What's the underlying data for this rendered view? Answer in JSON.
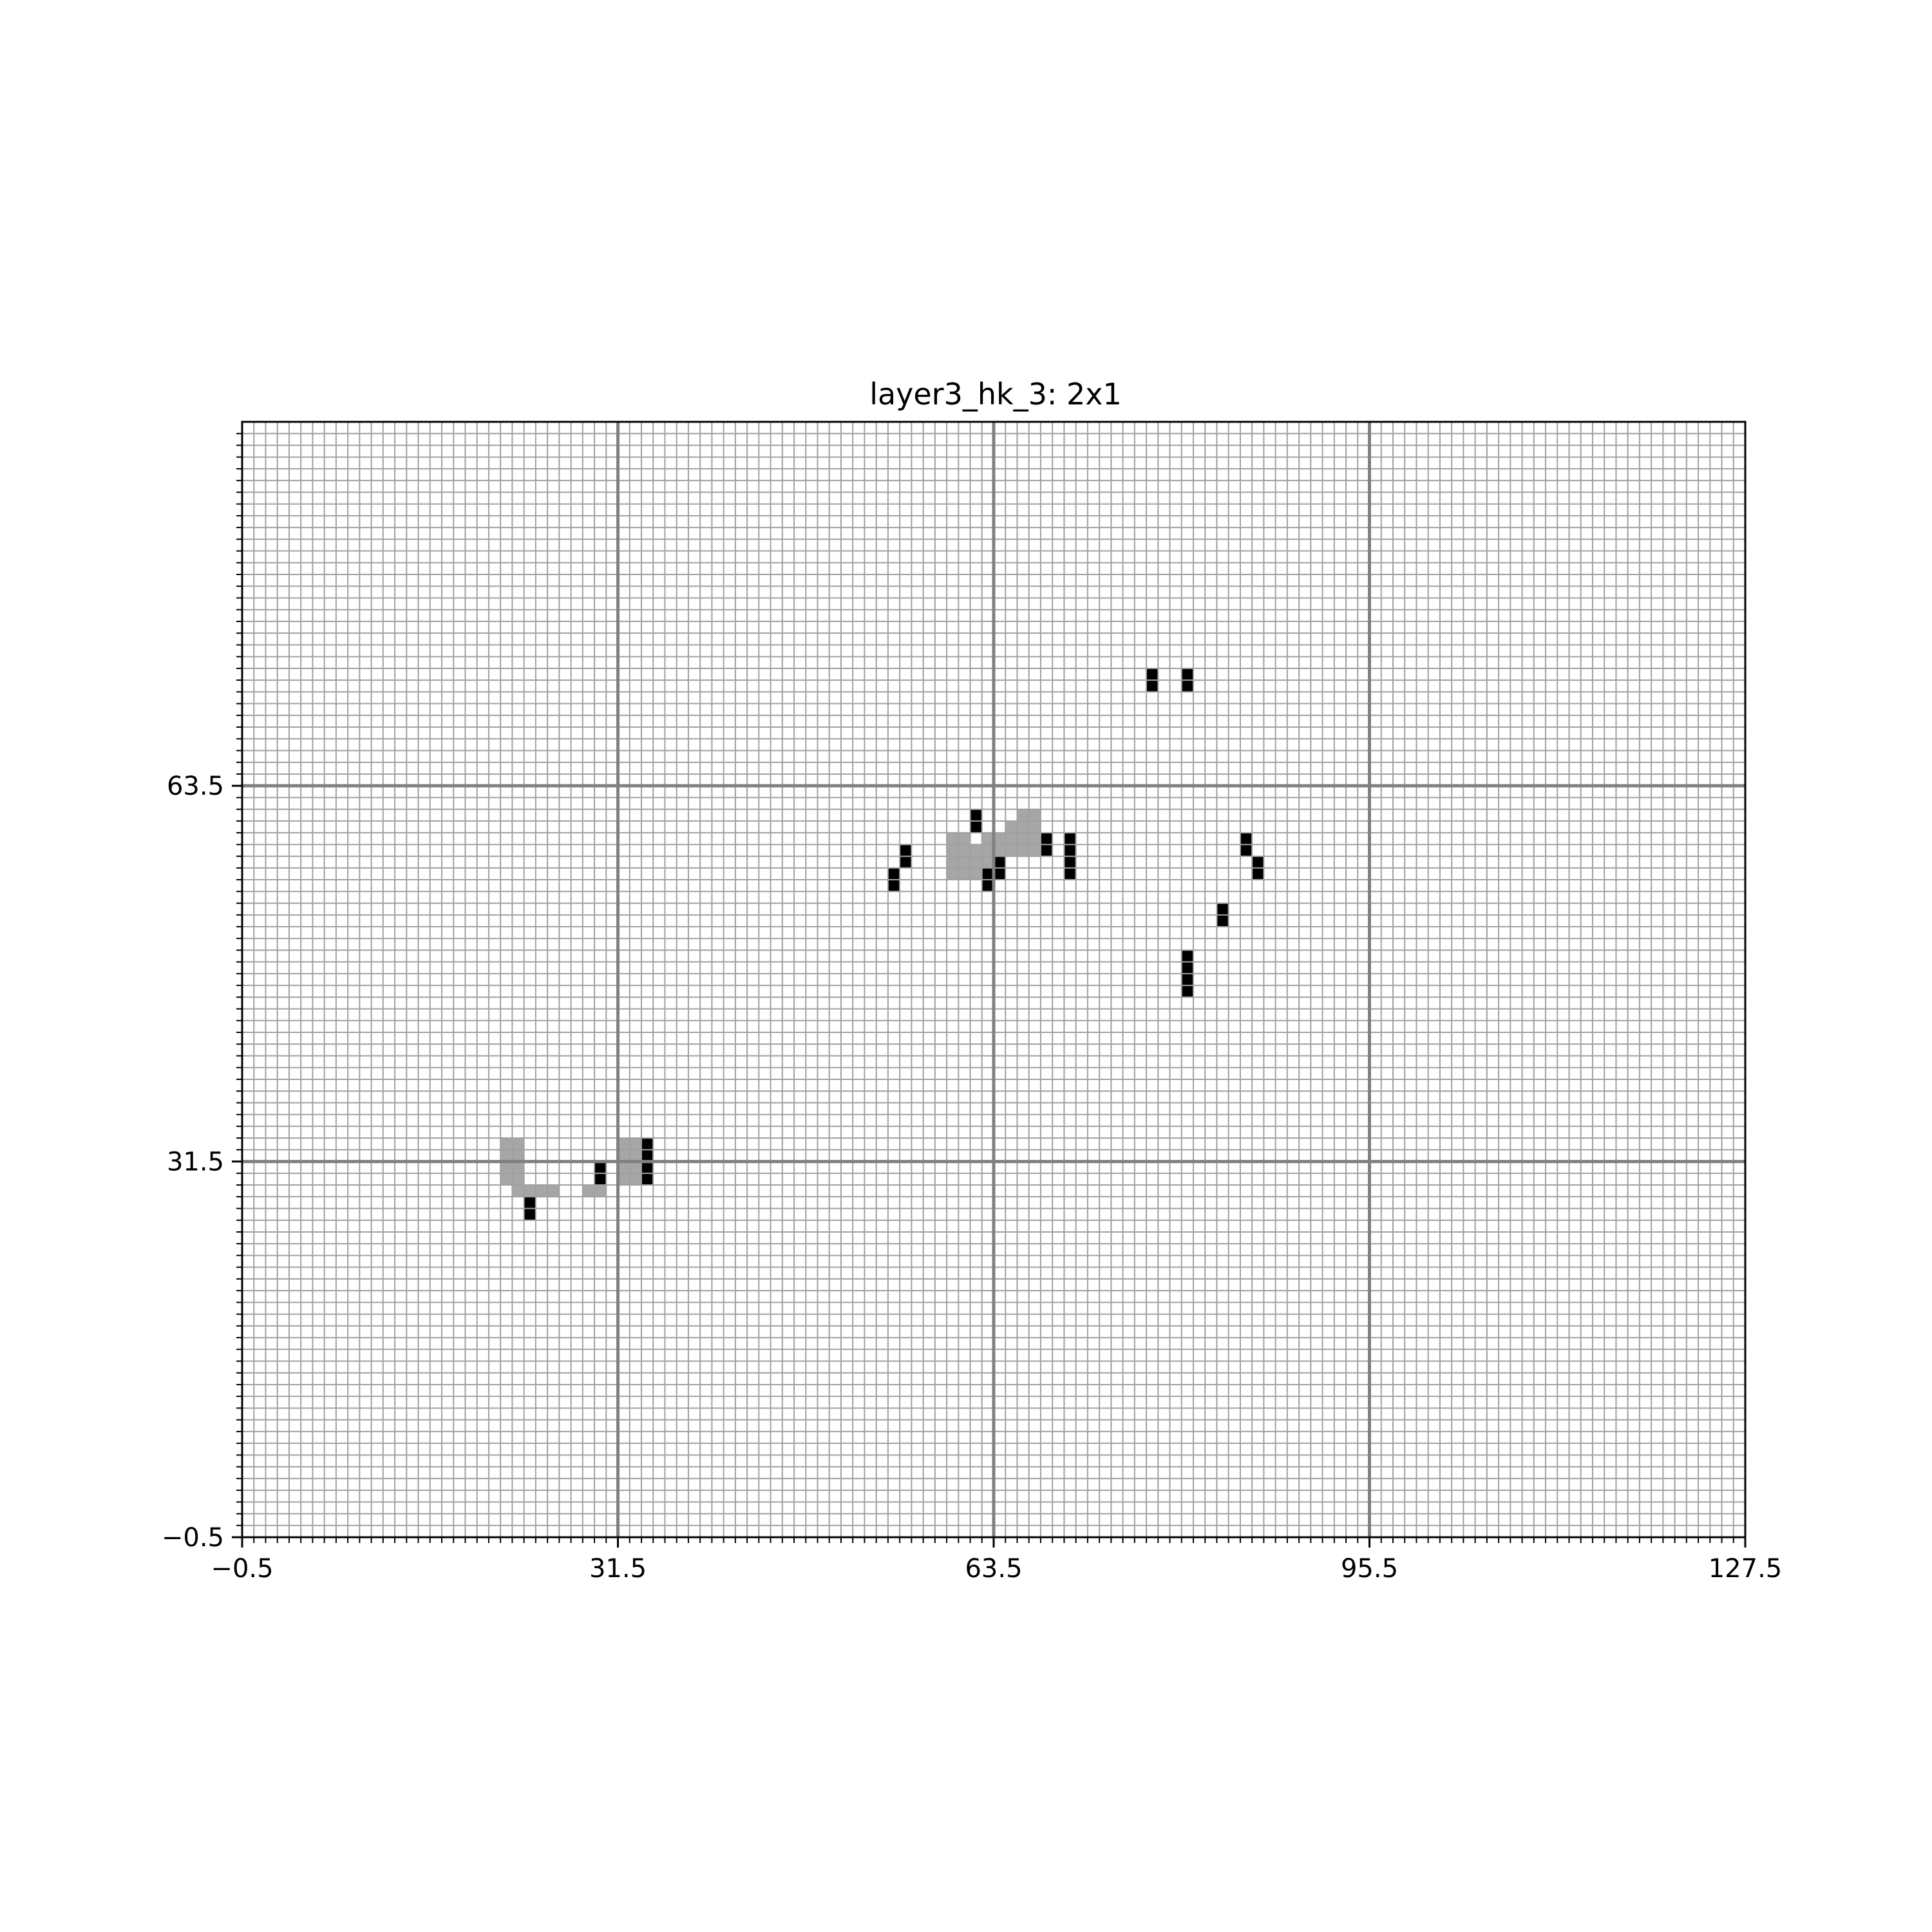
{
  "chart_data": {
    "type": "heatmap",
    "title": "layer3_hk_3: 2x1",
    "xlabel": "",
    "ylabel": "",
    "xlim": [
      -0.5,
      127.5
    ],
    "ylim": [
      -0.5,
      94.5
    ],
    "major_grid": true,
    "minor_grid": true,
    "x_ticks": [
      -0.5,
      31.5,
      63.5,
      95.5,
      127.5
    ],
    "x_tick_labels": [
      "−0.5",
      "31.5",
      "63.5",
      "95.5",
      "127.5"
    ],
    "y_ticks": [
      -0.5,
      31.5,
      63.5
    ],
    "y_tick_labels": [
      "−0.5",
      "31.5",
      "63.5"
    ],
    "colors": {
      "background": "#ffffff",
      "grid_minor": "#a0a0a0",
      "grid_major": "#808080",
      "active": "#000000",
      "context": "#a6a6a6"
    },
    "gray_cells": [
      [
        22,
        33
      ],
      [
        22,
        32
      ],
      [
        22,
        31
      ],
      [
        22,
        30
      ],
      [
        23,
        33
      ],
      [
        23,
        32
      ],
      [
        23,
        31
      ],
      [
        23,
        30
      ],
      [
        23,
        29
      ],
      [
        24,
        29
      ],
      [
        25,
        29
      ],
      [
        26,
        29
      ],
      [
        29,
        29
      ],
      [
        30,
        29
      ],
      [
        32,
        33
      ],
      [
        32,
        32
      ],
      [
        32,
        31
      ],
      [
        32,
        30
      ],
      [
        33,
        33
      ],
      [
        33,
        32
      ],
      [
        33,
        31
      ],
      [
        33,
        30
      ],
      [
        60,
        59
      ],
      [
        60,
        58
      ],
      [
        60,
        57
      ],
      [
        60,
        56
      ],
      [
        61,
        59
      ],
      [
        61,
        58
      ],
      [
        61,
        57
      ],
      [
        61,
        56
      ],
      [
        62,
        58
      ],
      [
        62,
        57
      ],
      [
        62,
        56
      ],
      [
        63,
        59
      ],
      [
        63,
        58
      ],
      [
        63,
        57
      ],
      [
        64,
        59
      ],
      [
        64,
        58
      ],
      [
        65,
        60
      ],
      [
        65,
        59
      ],
      [
        65,
        58
      ],
      [
        66,
        61
      ],
      [
        66,
        60
      ],
      [
        66,
        59
      ],
      [
        66,
        58
      ],
      [
        67,
        61
      ],
      [
        67,
        60
      ],
      [
        67,
        59
      ],
      [
        67,
        58
      ],
      [
        68,
        59
      ],
      [
        68,
        58
      ]
    ],
    "black_cells": [
      [
        24,
        28
      ],
      [
        24,
        27
      ],
      [
        30,
        31
      ],
      [
        30,
        30
      ],
      [
        34,
        33
      ],
      [
        34,
        32
      ],
      [
        34,
        31
      ],
      [
        34,
        30
      ],
      [
        55,
        56
      ],
      [
        55,
        55
      ],
      [
        56,
        58
      ],
      [
        56,
        57
      ],
      [
        62,
        61
      ],
      [
        62,
        60
      ],
      [
        63,
        56
      ],
      [
        63,
        55
      ],
      [
        64,
        57
      ],
      [
        64,
        56
      ],
      [
        68,
        59
      ],
      [
        68,
        58
      ],
      [
        70,
        59
      ],
      [
        70,
        58
      ],
      [
        70,
        57
      ],
      [
        70,
        56
      ],
      [
        77,
        73
      ],
      [
        77,
        72
      ],
      [
        80,
        73
      ],
      [
        80,
        72
      ],
      [
        80,
        49
      ],
      [
        80,
        48
      ],
      [
        80,
        47
      ],
      [
        80,
        46
      ],
      [
        83,
        53
      ],
      [
        83,
        52
      ],
      [
        85,
        59
      ],
      [
        85,
        58
      ],
      [
        86,
        57
      ],
      [
        86,
        56
      ]
    ]
  }
}
